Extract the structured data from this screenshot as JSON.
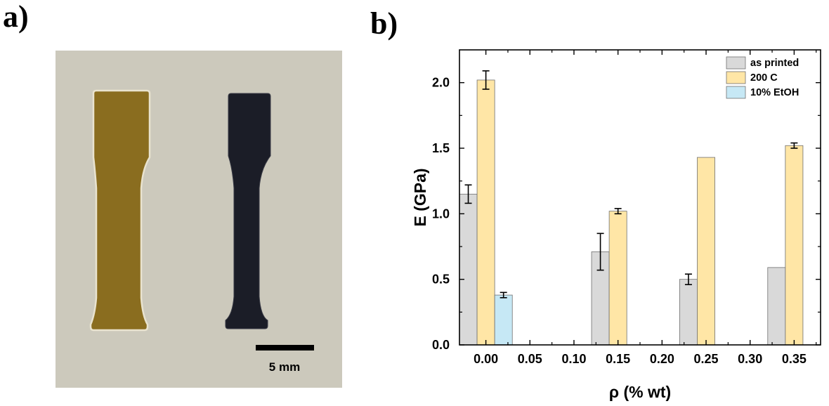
{
  "panels": {
    "a_label": "a)",
    "b_label": "b)"
  },
  "photo": {
    "scale_bar_label": "5 mm",
    "colors": {
      "background": "#ccc9bc",
      "specimen_left": "#8a6d1f",
      "specimen_right": "#1b1d27"
    }
  },
  "chart_data": {
    "type": "bar",
    "xlabel": "ρ (% wt)",
    "ylabel": "E (GPa)",
    "xlim": [
      -0.03,
      0.38
    ],
    "ylim": [
      0,
      2.25
    ],
    "x_ticks": [
      "0.00",
      "0.05",
      "0.10",
      "0.15",
      "0.20",
      "0.25",
      "0.30",
      "0.35"
    ],
    "y_ticks": [
      "0.0",
      "0.5",
      "1.0",
      "1.5",
      "2.0"
    ],
    "categories": [
      0.0,
      0.15,
      0.25,
      0.35
    ],
    "series": [
      {
        "name": "as printed",
        "color": "#d9d9d9",
        "values": [
          1.15,
          0.71,
          0.5,
          0.59
        ],
        "errors": [
          0.07,
          0.14,
          0.04,
          null
        ]
      },
      {
        "name": "200 C",
        "color": "#ffe6a6",
        "values": [
          2.02,
          1.02,
          1.43,
          1.52
        ],
        "errors": [
          0.07,
          0.02,
          null,
          0.02
        ]
      },
      {
        "name": "10% EtOH",
        "color": "#c6e8f5",
        "values": [
          0.38,
          null,
          null,
          null
        ],
        "errors": [
          0.02,
          null,
          null,
          null
        ]
      }
    ],
    "legend": "top-right",
    "grid": false
  }
}
